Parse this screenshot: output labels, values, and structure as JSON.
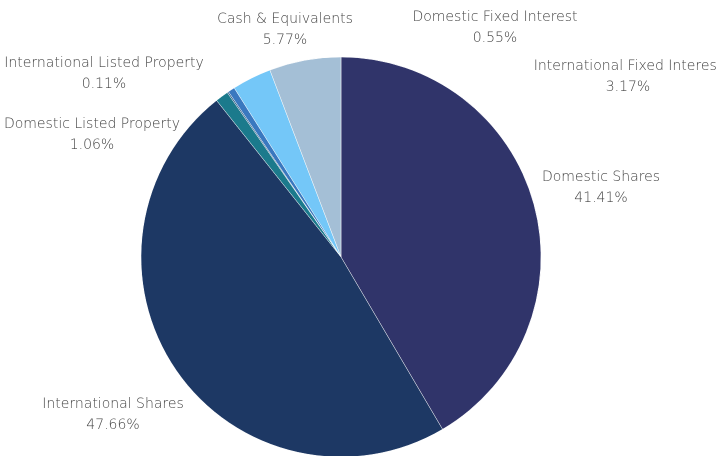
{
  "chart_data": {
    "type": "pie",
    "categories": [
      "Domestic Shares",
      "International Shares",
      "Domestic Listed Property",
      "International Listed Property",
      "Domestic Fixed Interest",
      "International Fixed Interest",
      "Cash & Equivalents"
    ],
    "values": [
      41.41,
      47.66,
      1.06,
      0.11,
      0.55,
      3.17,
      5.77
    ],
    "value_labels": [
      "41.41%",
      "47.66%",
      "1.06%",
      "0.11%",
      "0.55%",
      "3.17%",
      "5.77%"
    ],
    "colors": [
      "#30346a",
      "#1d3864",
      "#1b7a8c",
      "#2b5c8a",
      "#3a78bf",
      "#74c7f8",
      "#a4bfd6"
    ]
  }
}
